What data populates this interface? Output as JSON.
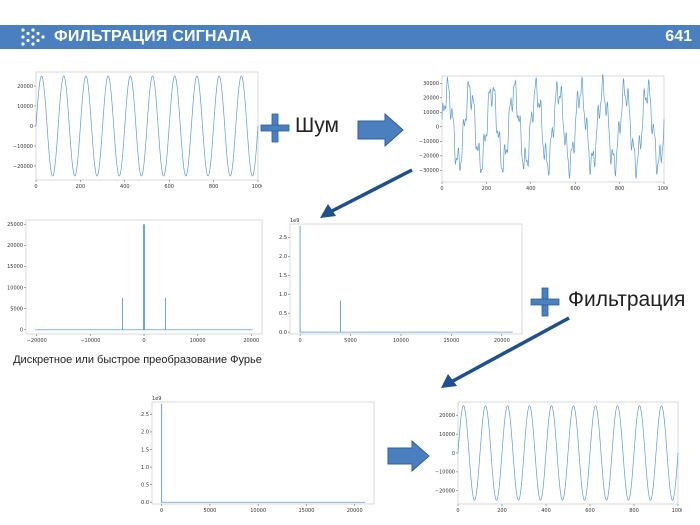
{
  "header": {
    "title": "ФИЛЬТРАЦИЯ СИГНАЛА",
    "page_number": "641",
    "accent_color": "#4a80c0"
  },
  "labels": {
    "noise": "Шум",
    "filtering": "Фильтрация",
    "caption": "Дискретное или быстрое преобразование Фурье"
  },
  "icons": {
    "plus_color": "#4a80c0",
    "arrow_color": "#4a80c0"
  },
  "chart_data": [
    {
      "id": "clean-signal",
      "type": "line",
      "xlim": [
        0,
        1000
      ],
      "ylim": [
        -27000,
        27000
      ],
      "xticks": [
        "0",
        "200",
        "400",
        "600",
        "800",
        "1000"
      ],
      "yticks": [
        "20000",
        "10000",
        "0",
        "−10000",
        "−20000"
      ],
      "series": [
        {
          "cycles": 10,
          "amplitude": 25000
        }
      ]
    },
    {
      "id": "noisy-signal",
      "type": "line",
      "xlim": [
        0,
        1000
      ],
      "ylim": [
        -38000,
        35000
      ],
      "xticks": [
        "0",
        "200",
        "400",
        "600",
        "800",
        "1000"
      ],
      "yticks": [
        "30000",
        "20000",
        "10000",
        "0",
        "−10000",
        "−20000",
        "−30000"
      ],
      "series": [
        {
          "cycles": 10,
          "amplitude": 25000,
          "noise_amplitude": 8000
        }
      ]
    },
    {
      "id": "spectrum-full",
      "type": "bar",
      "xlim": [
        -22000,
        22000
      ],
      "ylim": [
        -1000,
        26000
      ],
      "xticks": [
        "−20000",
        "−10000",
        "0",
        "10000",
        "20000"
      ],
      "yticks": [
        "25000",
        "20000",
        "15000",
        "10000",
        "5000",
        "0"
      ],
      "peaks": [
        {
          "x": -4000,
          "y": 7600
        },
        {
          "x": -100,
          "y": 25000
        },
        {
          "x": 100,
          "y": 25000
        },
        {
          "x": 4000,
          "y": 7600
        }
      ]
    },
    {
      "id": "spectrum-positive",
      "type": "bar",
      "multiplier": "1e9",
      "xlim": [
        -1000,
        22000
      ],
      "ylim": [
        -0.05,
        2.85
      ],
      "xticks": [
        "0",
        "5000",
        "10000",
        "15000",
        "20000"
      ],
      "yticks": [
        "2.5",
        "2.0",
        "1.5",
        "1.0",
        "0.5",
        "0.0"
      ],
      "peaks": [
        {
          "x": 0,
          "y": 2.8
        },
        {
          "x": 4000,
          "y": 0.83
        }
      ]
    },
    {
      "id": "spectrum-filtered",
      "type": "bar",
      "multiplier": "1e9",
      "xlim": [
        -1000,
        22000
      ],
      "ylim": [
        -0.05,
        2.85
      ],
      "xticks": [
        "0",
        "5000",
        "10000",
        "15000",
        "20000"
      ],
      "yticks": [
        "2.5",
        "2.0",
        "1.5",
        "1.0",
        "0.5",
        "0.0"
      ],
      "peaks": [
        {
          "x": 0,
          "y": 2.8
        }
      ]
    },
    {
      "id": "filtered-signal",
      "type": "line",
      "xlim": [
        0,
        1000
      ],
      "ylim": [
        -27000,
        27000
      ],
      "xticks": [
        "0",
        "200",
        "400",
        "600",
        "800",
        "1000"
      ],
      "yticks": [
        "20000",
        "10000",
        "0",
        "−10000",
        "−20000"
      ],
      "series": [
        {
          "cycles": 10,
          "amplitude": 25000
        }
      ]
    }
  ]
}
